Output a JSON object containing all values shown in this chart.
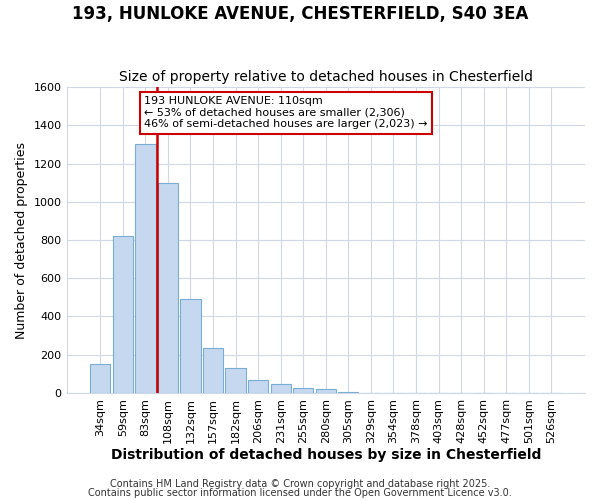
{
  "title": "193, HUNLOKE AVENUE, CHESTERFIELD, S40 3EA",
  "subtitle": "Size of property relative to detached houses in Chesterfield",
  "xlabel": "Distribution of detached houses by size in Chesterfield",
  "ylabel": "Number of detached properties",
  "bins": [
    "34sqm",
    "59sqm",
    "83sqm",
    "108sqm",
    "132sqm",
    "157sqm",
    "182sqm",
    "206sqm",
    "231sqm",
    "255sqm",
    "280sqm",
    "305sqm",
    "329sqm",
    "354sqm",
    "378sqm",
    "403sqm",
    "428sqm",
    "452sqm",
    "477sqm",
    "501sqm",
    "526sqm"
  ],
  "values": [
    150,
    820,
    1300,
    1100,
    490,
    235,
    130,
    70,
    45,
    25,
    20,
    5,
    0,
    0,
    0,
    0,
    0,
    0,
    0,
    0,
    0
  ],
  "bar_color": "#c5d8f0",
  "bar_edgecolor": "#7aadd4",
  "vline_x_index": 3,
  "annotation_line1": "193 HUNLOKE AVENUE: 110sqm",
  "annotation_line2": "← 53% of detached houses are smaller (2,306)",
  "annotation_line3": "46% of semi-detached houses are larger (2,023) →",
  "annotation_box_facecolor": "#ffffff",
  "annotation_box_edgecolor": "#cc0000",
  "vline_color": "#cc0000",
  "ylim": [
    0,
    1600
  ],
  "yticks": [
    0,
    200,
    400,
    600,
    800,
    1000,
    1200,
    1400,
    1600
  ],
  "footer1": "Contains HM Land Registry data © Crown copyright and database right 2025.",
  "footer2": "Contains public sector information licensed under the Open Government Licence v3.0.",
  "fig_background": "#ffffff",
  "axes_background": "#ffffff",
  "grid_color": "#d0d8e8",
  "title_fontsize": 12,
  "subtitle_fontsize": 10,
  "xlabel_fontsize": 10,
  "ylabel_fontsize": 9,
  "tick_fontsize": 8,
  "footer_fontsize": 7
}
